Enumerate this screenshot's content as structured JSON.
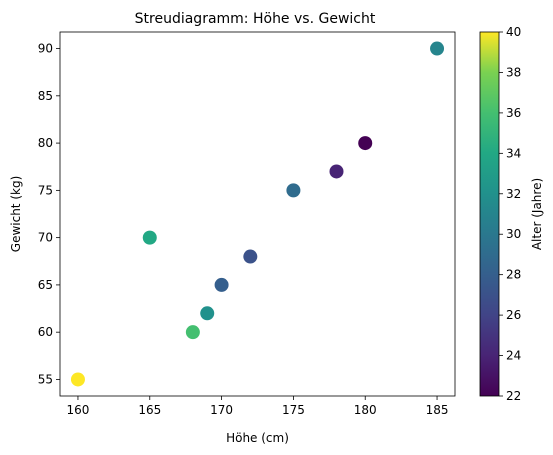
{
  "chart_data": {
    "type": "scatter",
    "title": "Streudiagramm: Höhe vs. Gewicht",
    "xlabel": "Höhe (cm)",
    "ylabel": "Gewicht (kg)",
    "colorbar_label": "Alter (Jahre)",
    "colormap": "viridis",
    "xlim": [
      158.75,
      186.25
    ],
    "ylim": [
      53.25,
      91.75
    ],
    "clim": [
      22,
      40
    ],
    "xticks": [
      160,
      165,
      170,
      175,
      180,
      185
    ],
    "yticks": [
      55,
      60,
      65,
      70,
      75,
      80,
      85,
      90
    ],
    "cticks": [
      22,
      24,
      26,
      28,
      30,
      32,
      34,
      36,
      38,
      40
    ],
    "grid": false,
    "points": [
      {
        "x": 160,
        "y": 55,
        "c": 40
      },
      {
        "x": 165,
        "y": 70,
        "c": 34
      },
      {
        "x": 168,
        "y": 60,
        "c": 36
      },
      {
        "x": 169,
        "y": 62,
        "c": 32
      },
      {
        "x": 170,
        "y": 65,
        "c": 28
      },
      {
        "x": 172,
        "y": 68,
        "c": 27
      },
      {
        "x": 175,
        "y": 75,
        "c": 29
      },
      {
        "x": 178,
        "y": 77,
        "c": 24
      },
      {
        "x": 180,
        "y": 80,
        "c": 22
      },
      {
        "x": 185,
        "y": 90,
        "c": 31
      }
    ]
  }
}
